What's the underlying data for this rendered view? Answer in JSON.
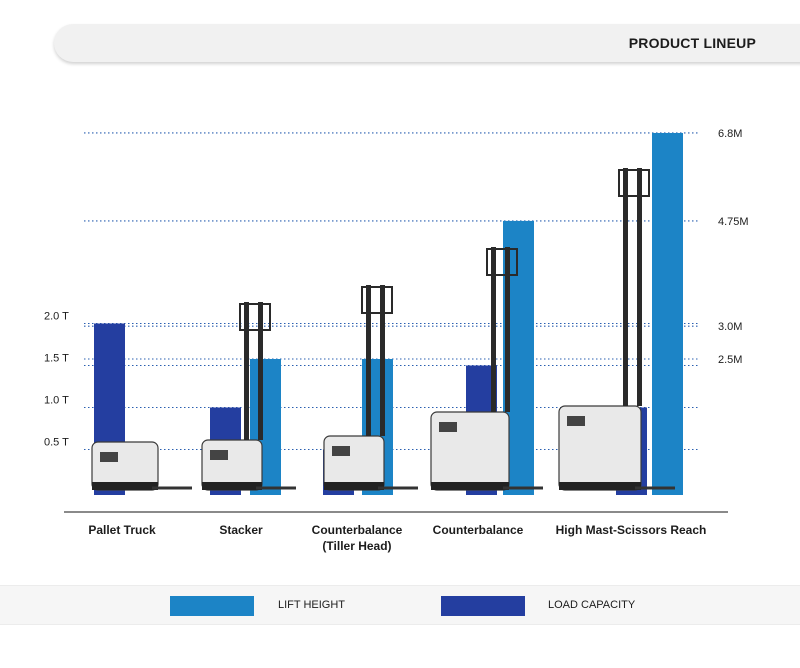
{
  "header": {
    "title": "PRODUCT LINEUP"
  },
  "colors": {
    "lift_height": "#1c84c6",
    "load_capacity": "#243ea0",
    "gridline": "#2a5fb0",
    "axis": "#444444"
  },
  "legend": {
    "lift_height_label": "LIFT HEIGHT",
    "load_capacity_label": "LOAD CAPACITY"
  },
  "chart_data": {
    "type": "bar",
    "categories": [
      "Pallet Truck",
      "Stacker",
      "Counterbalance\n(Tiller Head)",
      "Counterbalance",
      "High Mast-Scissors Reach"
    ],
    "series": [
      {
        "name": "LOAD CAPACITY",
        "unit": "T",
        "values": [
          2.0,
          1.0,
          0.5,
          1.5,
          1.0
        ]
      },
      {
        "name": "LIFT HEIGHT",
        "unit": "M",
        "values": [
          null,
          2.5,
          2.5,
          4.75,
          6.8
        ]
      }
    ],
    "left_axis_ticks": [
      "0.5 T",
      "1.0 T",
      "1.5 T",
      "2.0 T"
    ],
    "left_axis_values": [
      0.5,
      1.0,
      1.5,
      2.0
    ],
    "right_axis_ticks": [
      "2.5M",
      "3.0M",
      "4.75M",
      "6.8M"
    ],
    "right_axis_values": [
      2.5,
      3.0,
      4.75,
      6.8
    ],
    "legend_position": "bottom"
  }
}
